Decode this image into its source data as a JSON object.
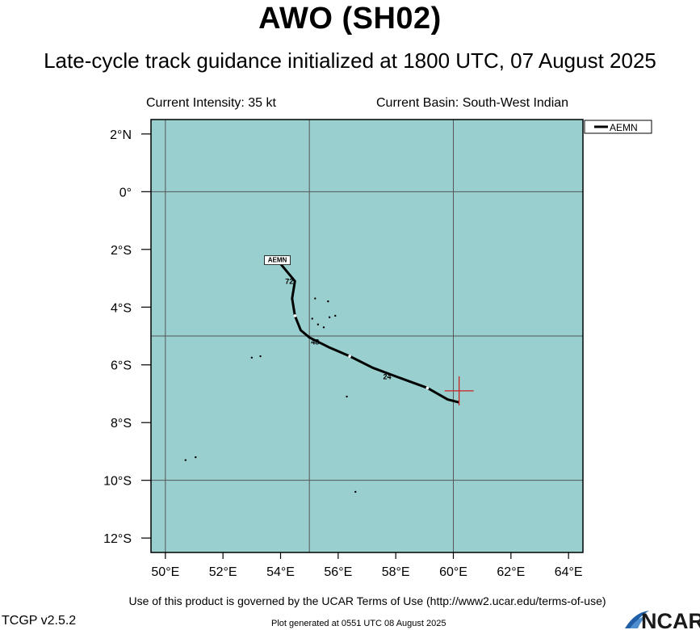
{
  "header": {
    "title": "AWO (SH02)",
    "subtitle": "Late-cycle track guidance initialized at 1800 UTC, 07 August 2025",
    "current_intensity": "Current Intensity: 35 kt",
    "current_basin": "Current Basin: South-West Indian"
  },
  "map": {
    "background_color": "#99cfcf",
    "grid_color": "#555555",
    "track_color": "#000000",
    "marker_color": "#cc2222",
    "lon_range": [
      49.5,
      64.5
    ],
    "lat_range": [
      -12.5,
      2.5
    ],
    "lon_ticks": [
      {
        "value": 50,
        "label": "50°E"
      },
      {
        "value": 52,
        "label": "52°E"
      },
      {
        "value": 54,
        "label": "54°E"
      },
      {
        "value": 56,
        "label": "56°E"
      },
      {
        "value": 58,
        "label": "58°E"
      },
      {
        "value": 60,
        "label": "60°E"
      },
      {
        "value": 62,
        "label": "62°E"
      },
      {
        "value": 64,
        "label": "64°E"
      }
    ],
    "lat_ticks": [
      {
        "value": 2,
        "label": "2°N"
      },
      {
        "value": 0,
        "label": "0°"
      },
      {
        "value": -2,
        "label": "2°S"
      },
      {
        "value": -4,
        "label": "4°S"
      },
      {
        "value": -6,
        "label": "6°S"
      },
      {
        "value": -8,
        "label": "8°S"
      },
      {
        "value": -10,
        "label": "10°S"
      },
      {
        "value": -12,
        "label": "12°S"
      }
    ],
    "grid_lon": [
      50,
      55,
      60
    ],
    "grid_lat": [
      0,
      -5,
      -10
    ],
    "current_position": {
      "lon": 60.2,
      "lat": -6.9
    },
    "legend": {
      "entries": [
        "AEMN"
      ],
      "placement": "top-right outside plot"
    },
    "tracks": [
      {
        "name": "AEMN",
        "label": "AEMN",
        "points": [
          {
            "lon": 60.2,
            "lat": -7.3
          },
          {
            "lon": 59.8,
            "lat": -7.2
          },
          {
            "lon": 59.1,
            "lat": -6.8
          },
          {
            "lon": 58.0,
            "lat": -6.4
          },
          {
            "lon": 57.2,
            "lat": -6.1
          },
          {
            "lon": 56.4,
            "lat": -5.7
          },
          {
            "lon": 55.7,
            "lat": -5.4
          },
          {
            "lon": 55.0,
            "lat": -5.05
          },
          {
            "lon": 54.7,
            "lat": -4.8
          },
          {
            "lon": 54.5,
            "lat": -4.3
          },
          {
            "lon": 54.4,
            "lat": -3.7
          },
          {
            "lon": 54.5,
            "lat": -3.1
          },
          {
            "lon": 54.0,
            "lat": -2.5
          }
        ],
        "time_labels": [
          {
            "label": "24",
            "lon": 57.7,
            "lat": -6.5
          },
          {
            "label": "48",
            "lon": 55.2,
            "lat": -5.3
          },
          {
            "label": "72",
            "lon": 54.3,
            "lat": -3.2
          }
        ],
        "dots": [
          {
            "lon": 59.1,
            "lat": -6.8
          },
          {
            "lon": 56.4,
            "lat": -5.7
          },
          {
            "lon": 54.5,
            "lat": -4.3
          }
        ]
      }
    ],
    "islands": [
      {
        "lon": 55.1,
        "lat": -4.4
      },
      {
        "lon": 55.3,
        "lat": -4.6
      },
      {
        "lon": 55.5,
        "lat": -4.7
      },
      {
        "lon": 55.7,
        "lat": -4.35
      },
      {
        "lon": 55.9,
        "lat": -4.3
      },
      {
        "lon": 55.65,
        "lat": -3.8
      },
      {
        "lon": 55.2,
        "lat": -3.7
      },
      {
        "lon": 53.3,
        "lat": -5.7
      },
      {
        "lon": 53.0,
        "lat": -5.75
      },
      {
        "lon": 56.3,
        "lat": -7.1
      },
      {
        "lon": 50.7,
        "lat": -9.3
      },
      {
        "lon": 51.05,
        "lat": -9.2
      },
      {
        "lon": 56.6,
        "lat": -10.4
      }
    ]
  },
  "footer": {
    "terms": "Use of this product is governed by the UCAR Terms of Use (http://www2.ucar.edu/terms-of-use)",
    "version": "TCGP v2.5.2",
    "generated": "Plot generated at 0551 UTC   08 August 2025",
    "logo_text": "NCAR"
  }
}
